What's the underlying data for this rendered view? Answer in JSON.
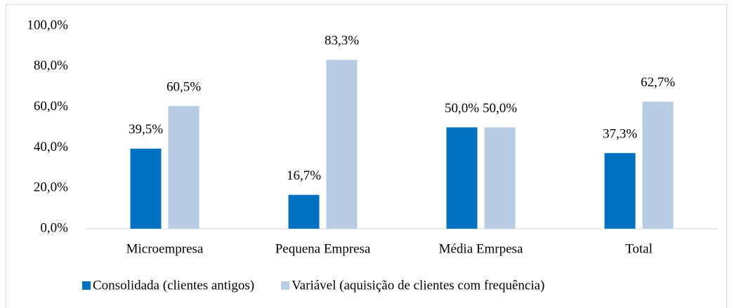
{
  "chart_data": {
    "type": "bar",
    "categories": [
      "Microempresa",
      "Pequena Empresa",
      "Média Emrpesa",
      "Total"
    ],
    "series": [
      {
        "name": "Consolidada (clientes antigos)",
        "color": "#0070c0",
        "values": [
          39.5,
          16.7,
          50.0,
          37.3
        ],
        "value_labels": [
          "39,5%",
          "16,7%",
          "50,0%",
          "37,3%"
        ]
      },
      {
        "name": "Variável (aquisição de clientes com frequência)",
        "color": "#b8cce4",
        "values": [
          60.5,
          83.3,
          50.0,
          62.7
        ],
        "value_labels": [
          "60,5%",
          "83,3%",
          "50,0%",
          "62,7%"
        ]
      }
    ],
    "ylim": [
      0,
      100
    ],
    "yticks": [
      {
        "value": 0,
        "label": "0,0%"
      },
      {
        "value": 20,
        "label": "20,0%"
      },
      {
        "value": 40,
        "label": "40,0%"
      },
      {
        "value": 60,
        "label": "60,0%"
      },
      {
        "value": 80,
        "label": "80,0%"
      },
      {
        "value": 100,
        "label": "100,0%"
      }
    ],
    "legend": "bottom"
  }
}
